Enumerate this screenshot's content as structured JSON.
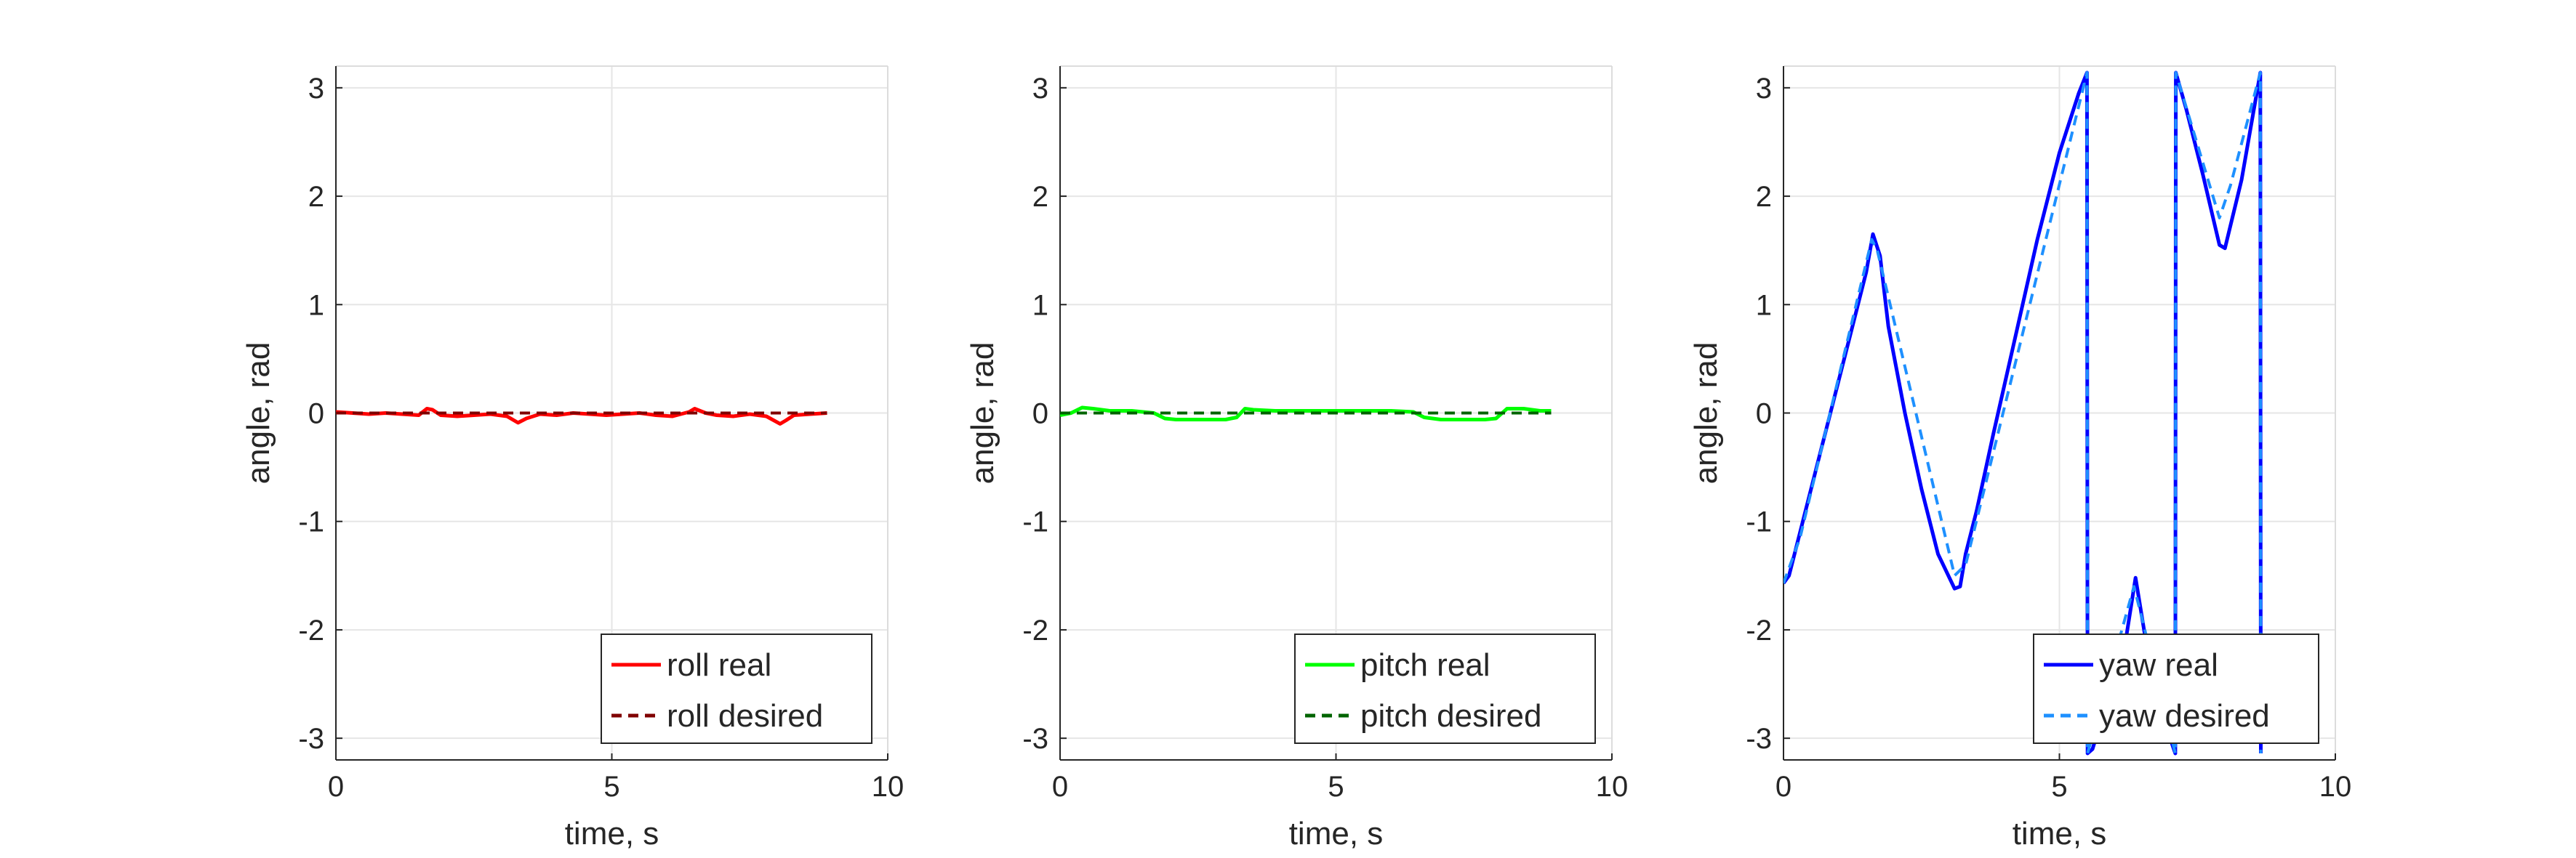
{
  "chart_data": [
    {
      "type": "line",
      "xlabel": "time, s",
      "ylabel": "angle, rad",
      "xlim": [
        0,
        10
      ],
      "ylim": [
        -3.2,
        3.2
      ],
      "xticks": [
        "0",
        "5",
        "10"
      ],
      "yticks": [
        "-3",
        "-2",
        "-1",
        "0",
        "1",
        "2",
        "3"
      ],
      "grid": true,
      "legend_position": "bottom-right",
      "series": [
        {
          "name": "roll real",
          "color": "#ff0000",
          "style": "solid",
          "x": [
            0,
            0.3,
            0.6,
            0.9,
            1.2,
            1.5,
            1.65,
            1.75,
            1.9,
            2.2,
            2.5,
            2.8,
            3.1,
            3.3,
            3.45,
            3.7,
            4.0,
            4.3,
            4.6,
            4.9,
            5.2,
            5.5,
            5.8,
            6.1,
            6.4,
            6.5,
            6.7,
            6.9,
            7.2,
            7.5,
            7.8,
            8.05,
            8.15,
            8.3,
            8.6,
            8.9
          ],
          "y": [
            0.01,
            0.0,
            -0.01,
            0.0,
            -0.01,
            -0.02,
            0.04,
            0.03,
            -0.02,
            -0.03,
            -0.02,
            -0.01,
            -0.03,
            -0.09,
            -0.05,
            -0.01,
            -0.02,
            0.0,
            -0.01,
            -0.02,
            -0.01,
            0.0,
            -0.02,
            -0.03,
            0.01,
            0.04,
            0.0,
            -0.02,
            -0.03,
            -0.01,
            -0.03,
            -0.1,
            -0.07,
            -0.02,
            -0.01,
            0.0
          ]
        },
        {
          "name": "roll desired",
          "color": "#800000",
          "style": "dashed",
          "x": [
            0,
            8.9
          ],
          "y": [
            0,
            0
          ]
        }
      ]
    },
    {
      "type": "line",
      "xlabel": "time, s",
      "ylabel": "angle, rad",
      "xlim": [
        0,
        10
      ],
      "ylim": [
        -3.2,
        3.2
      ],
      "xticks": [
        "0",
        "5",
        "10"
      ],
      "yticks": [
        "-3",
        "-2",
        "-1",
        "0",
        "1",
        "2",
        "3"
      ],
      "grid": true,
      "legend_position": "bottom-right",
      "series": [
        {
          "name": "pitch real",
          "color": "#00ff00",
          "style": "solid",
          "x": [
            0,
            0.2,
            0.4,
            0.6,
            0.9,
            1.3,
            1.7,
            1.9,
            2.1,
            2.5,
            3.0,
            3.2,
            3.35,
            3.5,
            3.9,
            4.5,
            5.0,
            5.5,
            6.0,
            6.4,
            6.6,
            6.9,
            7.3,
            7.7,
            7.9,
            8.1,
            8.4,
            8.7,
            8.9
          ],
          "y": [
            -0.02,
            0.0,
            0.05,
            0.04,
            0.02,
            0.02,
            0.0,
            -0.05,
            -0.06,
            -0.06,
            -0.06,
            -0.04,
            0.04,
            0.03,
            0.02,
            0.02,
            0.02,
            0.02,
            0.02,
            0.01,
            -0.04,
            -0.06,
            -0.06,
            -0.06,
            -0.05,
            0.04,
            0.04,
            0.02,
            0.02
          ]
        },
        {
          "name": "pitch desired",
          "color": "#006400",
          "style": "dashed",
          "x": [
            0,
            8.9
          ],
          "y": [
            0,
            0
          ]
        }
      ]
    },
    {
      "type": "line",
      "xlabel": "time, s",
      "ylabel": "angle, rad",
      "xlim": [
        0,
        10
      ],
      "ylim": [
        -3.2,
        3.2
      ],
      "xticks": [
        "0",
        "5",
        "10"
      ],
      "yticks": [
        "-3",
        "-2",
        "-1",
        "0",
        "1",
        "2",
        "3"
      ],
      "grid": true,
      "legend_position": "bottom-right",
      "series": [
        {
          "name": "yaw real",
          "color": "#0000ff",
          "style": "solid",
          "x": [
            0,
            0.1,
            0.3,
            0.6,
            0.9,
            1.2,
            1.5,
            1.62,
            1.75,
            1.9,
            2.2,
            2.5,
            2.8,
            3.1,
            3.2,
            3.3,
            3.5,
            3.8,
            4.2,
            4.6,
            5.0,
            5.35,
            5.5,
            5.51,
            5.6,
            5.9,
            6.2,
            6.38,
            6.55,
            6.8,
            7.1,
            7.11,
            7.3,
            7.6,
            7.9,
            8.0,
            8.3,
            8.64,
            8.65
          ],
          "y": [
            -1.57,
            -1.5,
            -1.1,
            -0.5,
            0.1,
            0.7,
            1.3,
            1.65,
            1.45,
            0.8,
            0.0,
            -0.7,
            -1.3,
            -1.62,
            -1.6,
            -1.3,
            -0.9,
            -0.2,
            0.7,
            1.6,
            2.4,
            2.95,
            3.14,
            -3.14,
            -3.1,
            -2.6,
            -2.1,
            -1.52,
            -2.05,
            -2.7,
            -3.14,
            3.14,
            2.8,
            2.2,
            1.55,
            1.52,
            2.15,
            3.14,
            -3.14
          ]
        },
        {
          "name": "yaw desired",
          "color": "#1e90ff",
          "style": "dashed",
          "x": [
            0,
            0.3,
            1.6,
            1.7,
            3.1,
            3.3,
            5.5,
            5.51,
            6.35,
            6.5,
            7.1,
            7.11,
            7.9,
            8.1,
            8.64,
            8.65
          ],
          "y": [
            -1.57,
            -1.15,
            1.6,
            1.5,
            -1.5,
            -1.4,
            3.14,
            -3.14,
            -1.6,
            -1.9,
            -3.14,
            3.14,
            1.8,
            2.1,
            3.14,
            -3.14
          ]
        }
      ]
    }
  ]
}
